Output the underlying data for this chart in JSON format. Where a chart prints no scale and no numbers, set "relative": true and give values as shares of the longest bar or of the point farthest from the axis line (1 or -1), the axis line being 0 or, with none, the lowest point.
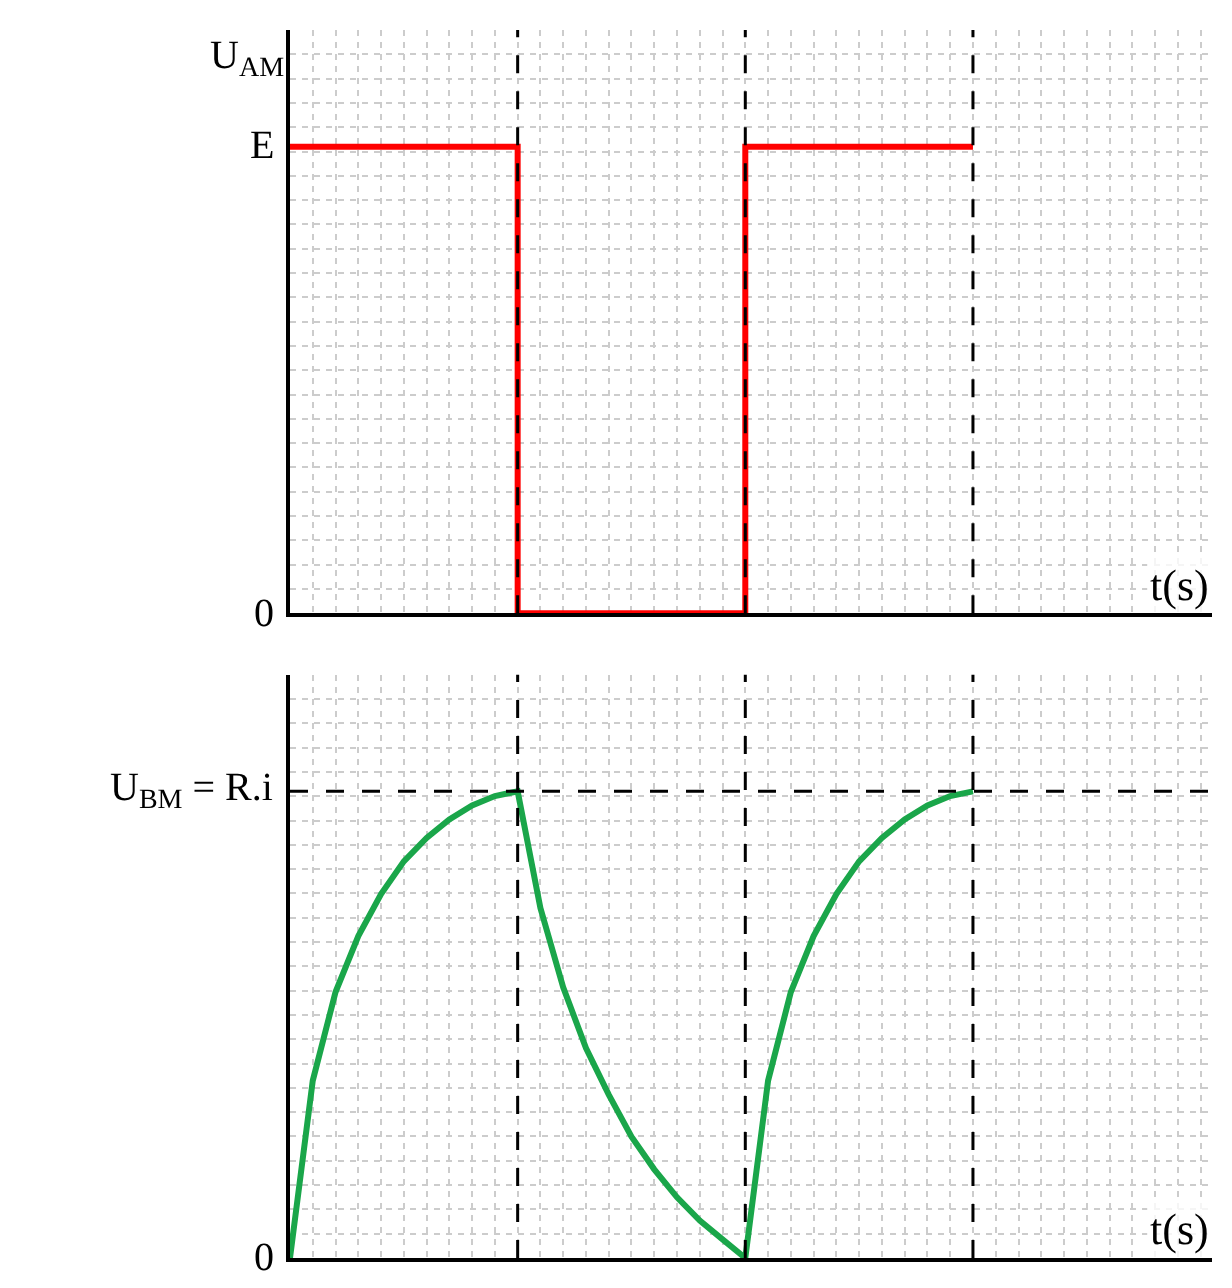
{
  "chart_data": [
    {
      "type": "step",
      "ylabel": "U$_{AM}$",
      "xlabel": "t(s)",
      "grid": true,
      "line_style": "solid",
      "relative": true,
      "annotations": [
        "E",
        "0"
      ],
      "categories": [
        null,
        null,
        null,
        null,
        null,
        null,
        null,
        null,
        null,
        null,
        null,
        null,
        null,
        null,
        null,
        null,
        null,
        null,
        null,
        null,
        null,
        null,
        null,
        null,
        null,
        null,
        null,
        null,
        null,
        null,
        null
      ],
      "series": [
        {
          "color": "#ff0000",
          "values": [
            1,
            1,
            1,
            1,
            1,
            1,
            1,
            1,
            1,
            1,
            0,
            0,
            0,
            0,
            0,
            0,
            0,
            0,
            0,
            0,
            1,
            1,
            1,
            1,
            1,
            1,
            1,
            1,
            1,
            1,
            1
          ]
        }
      ]
    },
    {
      "type": "line",
      "xlabel": "t(s)",
      "grid": true,
      "line_style": "solid",
      "relative": true,
      "annotations": [
        "U$_{BM}$ = R.i",
        "0"
      ],
      "categories": [
        null,
        null,
        null,
        null,
        null,
        null,
        null,
        null,
        null,
        null,
        null,
        null,
        null,
        null,
        null,
        null,
        null,
        null,
        null,
        null,
        null,
        null,
        null,
        null,
        null,
        null,
        null,
        null,
        null,
        null,
        null
      ],
      "series": [
        {
          "color": "#1aa64a",
          "values": [
            0,
            0.38,
            0.57,
            0.69,
            0.78,
            0.85,
            0.9,
            0.94,
            0.97,
            0.99,
            1,
            0.75,
            0.58,
            0.45,
            0.35,
            0.26,
            0.19,
            0.13,
            0.08,
            0.04,
            0,
            0.38,
            0.57,
            0.69,
            0.78,
            0.85,
            0.9,
            0.94,
            0.97,
            0.99,
            1
          ]
        }
      ]
    }
  ]
}
